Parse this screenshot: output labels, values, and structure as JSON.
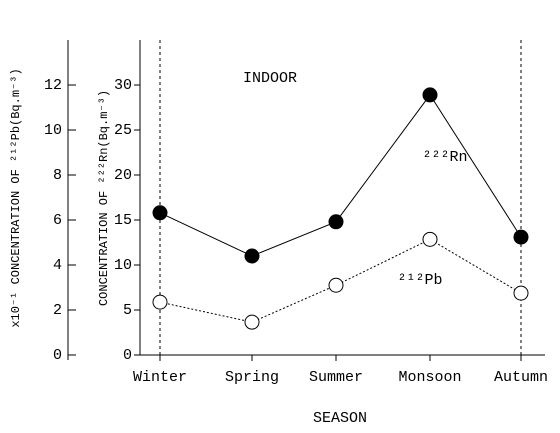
{
  "chart_data": {
    "type": "line",
    "title": "INDOOR",
    "xlabel": "SEASON",
    "ylabel": "CONCENTRATION OF ²²²Rn(Bq.m⁻³)",
    "y2label": "x10⁻¹ CONCENTRATION OF ²¹²Pb(Bq.m⁻³)",
    "categories": [
      "Winter",
      "Spring",
      "Summer",
      "Monsoon",
      "Autumn"
    ],
    "series": [
      {
        "name": "²²²Rn",
        "color": "#000000",
        "marker": "filled",
        "linestyle": "solid",
        "values": [
          15.8,
          11.0,
          14.8,
          28.9,
          13.1
        ]
      },
      {
        "name": "²¹²Pb",
        "color": "#000000",
        "marker": "open",
        "linestyle": "dotted",
        "axis": "y2",
        "values": [
          2.35,
          1.46,
          3.1,
          5.14,
          2.75
        ]
      }
    ],
    "ylim": [
      0,
      35
    ],
    "yticks": [
      0,
      5,
      10,
      15,
      20,
      25,
      30
    ],
    "y2lim": [
      0,
      14
    ],
    "y2ticks": [
      0,
      2,
      4,
      6,
      8,
      10,
      12
    ]
  }
}
